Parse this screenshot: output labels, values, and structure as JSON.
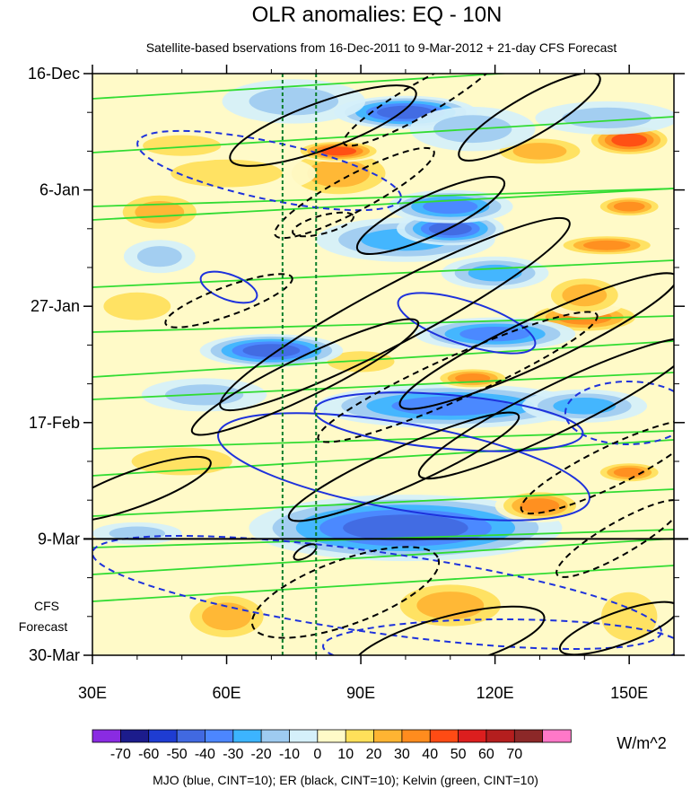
{
  "chart_data": {
    "type": "heatmap",
    "title": "OLR anomalies: EQ - 10N",
    "subtitle": "Satellite-based bservations from 16-Dec-2011 to 9-Mar-2012 + 21-day CFS Forecast",
    "x_axis": {
      "label": "",
      "range": [
        30,
        160
      ],
      "tick_values": [
        30,
        60,
        90,
        120,
        150
      ],
      "tick_labels": [
        "30E",
        "60E",
        "90E",
        "120E",
        "150E"
      ],
      "minor_tick_step": 10
    },
    "y_axis": {
      "range_days": [
        0,
        105
      ],
      "tick_days": [
        0,
        21,
        42,
        63,
        84,
        105
      ],
      "tick_labels": [
        "16-Dec",
        "6-Jan",
        "27-Jan",
        "17-Feb",
        "9-Mar",
        "30-Mar"
      ],
      "minor_tick_step_days": 7,
      "direction": "time increases downward"
    },
    "forecast_start_label": "9-Mar",
    "forecast_start_day": 84,
    "forecast_label_line1": "CFS",
    "forecast_label_line2": "Forecast",
    "reference_longitudes": [
      72.5,
      80
    ],
    "colorbar": {
      "units": "W/m^2",
      "labels": [
        "-70",
        "-60",
        "-50",
        "-40",
        "-30",
        "-20",
        "-10",
        "0",
        "10",
        "20",
        "30",
        "40",
        "50",
        "60",
        "70"
      ],
      "colors": [
        "#8a2be2",
        "#1c1c8c",
        "#1e3cd2",
        "#4169e1",
        "#4c86ff",
        "#3cb4ff",
        "#9ecbf0",
        "#d5f0fa",
        "#fffac8",
        "#ffe05a",
        "#ffb432",
        "#ff8c1e",
        "#ff4b14",
        "#dc1e1e",
        "#b41e1e",
        "#8c2828",
        "#ff78c8"
      ]
    },
    "footer": "MJO (blue, CINT=10); ER (black, CINT=10); Kelvin (green, CINT=10)",
    "series": [
      {
        "name": "MJO",
        "color": "#1e32dc"
      },
      {
        "name": "ER",
        "color": "#000000"
      },
      {
        "name": "Kelvin",
        "color": "#32dc32"
      }
    ]
  }
}
